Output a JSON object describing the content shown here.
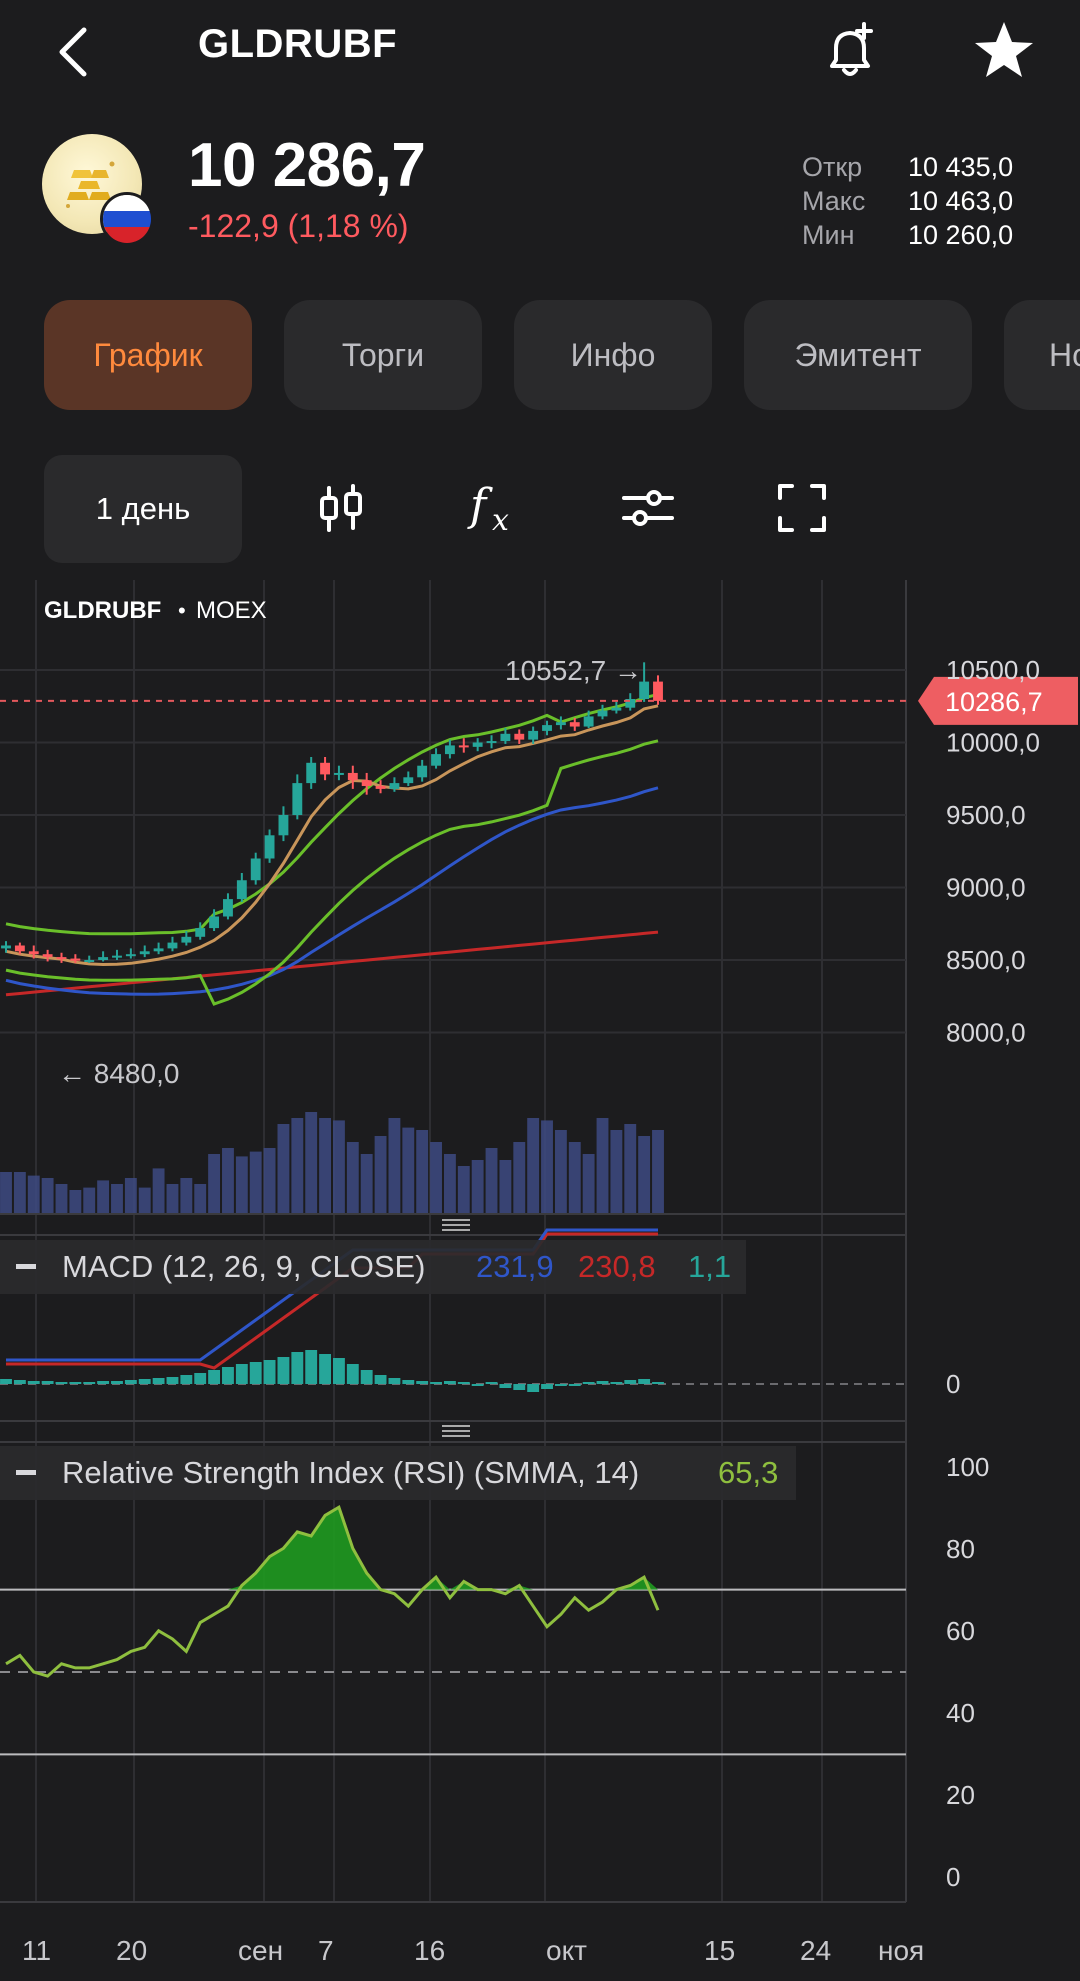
{
  "header": {
    "ticker": "GLDRUBF"
  },
  "quote": {
    "price": "10 286,7",
    "change": "-122,9 (1,18 %)",
    "stats": [
      {
        "label": "Откр",
        "value": "10 435,0"
      },
      {
        "label": "Макс",
        "value": "10 463,0"
      },
      {
        "label": "Мин",
        "value": "10 260,0"
      }
    ]
  },
  "tabs": [
    "График",
    "Торги",
    "Инфо",
    "Эмитент",
    "Но"
  ],
  "toolbar": {
    "period": "1 день"
  },
  "icons": [
    "back-icon",
    "bell-plus-icon",
    "star-icon",
    "candles-icon",
    "function-icon",
    "sliders-icon",
    "fullscreen-icon",
    "gold-bars-icon",
    "russia-flag-icon"
  ],
  "colors": {
    "accent": "#ff8a3d",
    "down": "#ff5a5f",
    "up": "#26a69a",
    "ma_fast": "#c8955a",
    "bollinger": "#6abf2a",
    "ma_mid": "#2f56c9",
    "ma_slow": "#c62828"
  },
  "chart": {
    "symbol": "GLDRUBF",
    "exchange": "MOEX",
    "current_price_tag": "10286,7",
    "high_marker": "10552,7 →",
    "low_marker": "← 8480,0",
    "y_labels": [
      "10500,0",
      "10000,0",
      "9500,0",
      "9000,0",
      "8500,0",
      "8000,0"
    ],
    "x_labels": [
      "11",
      "20",
      "сен",
      "7",
      "16",
      "окт",
      "15",
      "24",
      "ноя"
    ]
  },
  "macd": {
    "label": "MACD (12, 26, 9, CLOSE)",
    "macd_value": "231,9",
    "signal_value": "230,8",
    "hist_value": "1,1",
    "zero_label": "0"
  },
  "rsi": {
    "label": "Relative Strength Index (RSI) (SMMA, 14)",
    "value": "65,3",
    "y_labels": [
      "100",
      "80",
      "60",
      "40",
      "20",
      "0"
    ]
  },
  "chart_data": {
    "type": "candlestick",
    "ylim": [
      7900,
      10750
    ],
    "x": [
      "11",
      "12",
      "13",
      "14",
      "15",
      "18",
      "19",
      "20",
      "21",
      "22",
      "25",
      "26",
      "27",
      "28",
      "29",
      "сен",
      "2",
      "3",
      "4",
      "5",
      "6",
      "9",
      "10",
      "11",
      "12",
      "13",
      "16",
      "17",
      "18",
      "19",
      "20",
      "23",
      "24",
      "25",
      "26",
      "27",
      "30",
      "окт",
      "2",
      "3",
      "4",
      "7",
      "8",
      "9",
      "10",
      "11",
      "14",
      "15"
    ],
    "open": [
      8580,
      8600,
      8560,
      8540,
      8520,
      8510,
      8495,
      8500,
      8520,
      8530,
      8540,
      8560,
      8580,
      8620,
      8660,
      8720,
      8800,
      8920,
      9050,
      9200,
      9360,
      9500,
      9720,
      9860,
      9780,
      9790,
      9740,
      9700,
      9680,
      9720,
      9760,
      9840,
      9920,
      9980,
      9970,
      10000,
      10010,
      10060,
      10020,
      10080,
      10120,
      10140,
      10110,
      10180,
      10220,
      10240,
      10300,
      10420
    ],
    "close": [
      8600,
      8560,
      8540,
      8520,
      8510,
      8495,
      8500,
      8520,
      8530,
      8540,
      8560,
      8580,
      8620,
      8660,
      8720,
      8800,
      8920,
      9050,
      9200,
      9360,
      9500,
      9720,
      9860,
      9780,
      9790,
      9740,
      9700,
      9680,
      9720,
      9760,
      9840,
      9920,
      9980,
      9970,
      10000,
      10010,
      10060,
      10020,
      10080,
      10120,
      10140,
      10110,
      10180,
      10220,
      10240,
      10300,
      10420,
      10287
    ],
    "high": [
      8630,
      8620,
      8600,
      8570,
      8550,
      8540,
      8530,
      8560,
      8570,
      8580,
      8600,
      8620,
      8660,
      8700,
      8760,
      8850,
      8960,
      9100,
      9240,
      9400,
      9560,
      9780,
      9900,
      9900,
      9840,
      9840,
      9790,
      9740,
      9760,
      9800,
      9880,
      9960,
      10020,
      10030,
      10030,
      10050,
      10100,
      10090,
      10110,
      10150,
      10180,
      10170,
      10220,
      10260,
      10280,
      10340,
      10553,
      10463
    ],
    "low": [
      8550,
      8540,
      8510,
      8490,
      8480,
      8480,
      8480,
      8490,
      8500,
      8510,
      8520,
      8540,
      8560,
      8600,
      8640,
      8700,
      8780,
      8900,
      9020,
      9170,
      9320,
      9470,
      9680,
      9740,
      9740,
      9680,
      9640,
      9650,
      9660,
      9700,
      9730,
      9820,
      9890,
      9930,
      9940,
      9960,
      9990,
      9990,
      9990,
      10050,
      10090,
      10080,
      10100,
      10160,
      10200,
      10220,
      10280,
      10260
    ],
    "volume": [
      0.35,
      0.35,
      0.32,
      0.3,
      0.25,
      0.2,
      0.22,
      0.28,
      0.25,
      0.3,
      0.22,
      0.38,
      0.25,
      0.3,
      0.25,
      0.5,
      0.55,
      0.48,
      0.52,
      0.55,
      0.75,
      0.8,
      0.85,
      0.8,
      0.78,
      0.6,
      0.5,
      0.65,
      0.8,
      0.72,
      0.7,
      0.6,
      0.5,
      0.4,
      0.45,
      0.55,
      0.45,
      0.6,
      0.8,
      0.78,
      0.7,
      0.6,
      0.5,
      0.8,
      0.7,
      0.75,
      0.65,
      0.7
    ]
  }
}
